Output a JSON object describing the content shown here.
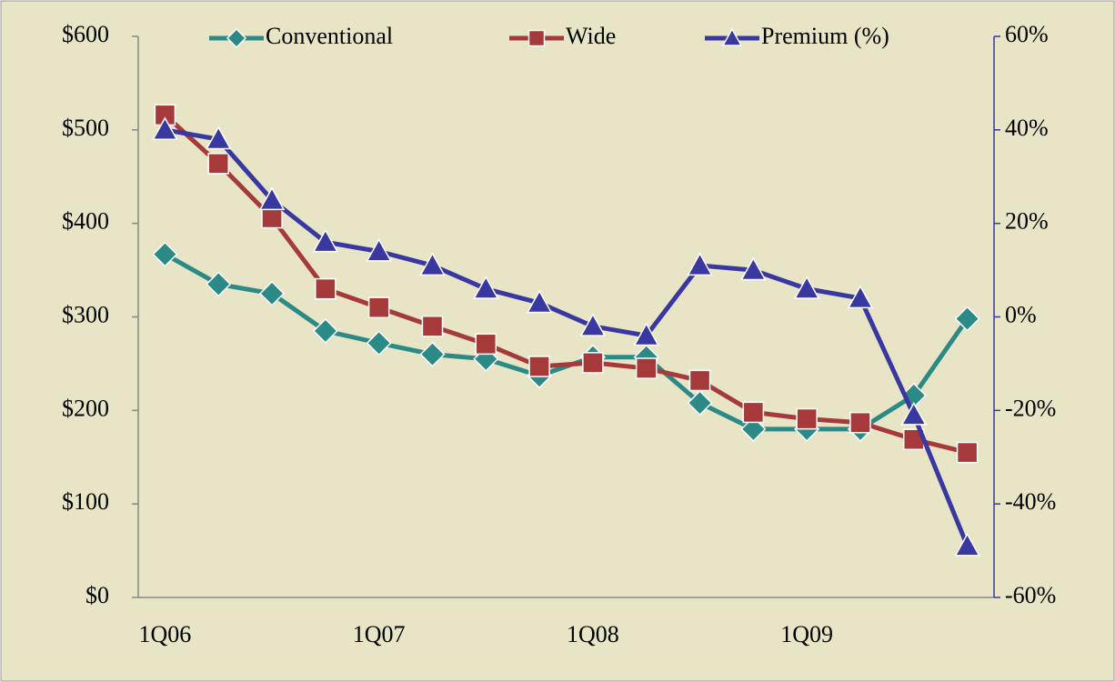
{
  "chart_data": {
    "type": "line",
    "categories": [
      "1Q06",
      null,
      null,
      null,
      "1Q07",
      null,
      null,
      null,
      "1Q08",
      null,
      null,
      null,
      "1Q09",
      null,
      null,
      null
    ],
    "series": [
      {
        "name": "Conventional",
        "color": "#2b8a85",
        "marker": "diamond",
        "values": [
          367,
          335,
          325,
          285,
          272,
          260,
          255,
          237,
          257,
          257,
          208,
          180,
          180,
          180,
          216,
          298
        ]
      },
      {
        "name": "Wide",
        "color": "#a63a3a",
        "marker": "square",
        "values": [
          516,
          464,
          406,
          330,
          310,
          290,
          271,
          247,
          251,
          245,
          232,
          198,
          191,
          187,
          169,
          155
        ]
      },
      {
        "name": "Premium (%)",
        "color": "#3838a0",
        "marker": "triangle",
        "axis": "y2",
        "values": [
          40,
          38,
          25,
          16,
          14,
          11,
          6,
          3,
          -2,
          -4,
          11,
          10,
          6,
          4,
          -21,
          -49
        ]
      }
    ],
    "ylim": [
      0,
      600
    ],
    "yticks": [
      {
        "value": 0,
        "label": "$0"
      },
      {
        "value": 100,
        "label": "$100"
      },
      {
        "value": 200,
        "label": "$200"
      },
      {
        "value": 300,
        "label": "$300"
      },
      {
        "value": 400,
        "label": "$400"
      },
      {
        "value": 500,
        "label": "$500"
      },
      {
        "value": 600,
        "label": "$600"
      }
    ],
    "y2lim": [
      -60,
      60
    ],
    "y2ticks": [
      {
        "value": -60,
        "label": "-60%"
      },
      {
        "value": -40,
        "label": "-40%"
      },
      {
        "value": -20,
        "label": "-20%"
      },
      {
        "value": 0,
        "label": "0%"
      },
      {
        "value": 20,
        "label": "20%"
      },
      {
        "value": 40,
        "label": "40%"
      },
      {
        "value": 60,
        "label": "60%"
      }
    ],
    "y2color": "#3838a0",
    "legend": "top",
    "grid": false
  }
}
